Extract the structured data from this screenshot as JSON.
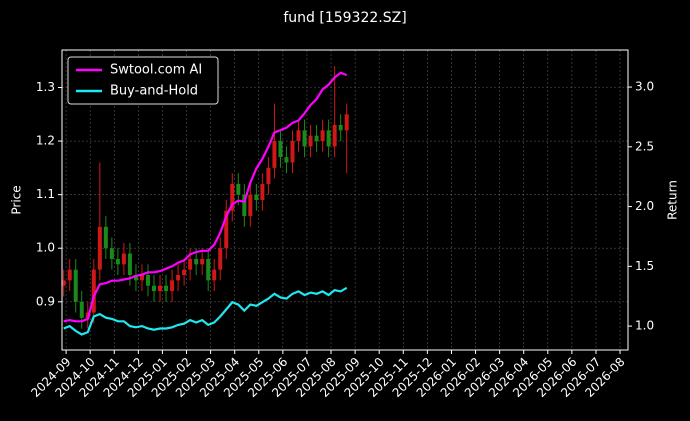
{
  "chart_data": {
    "type": "candlestick",
    "title": "fund [159322.SZ]",
    "ylabel": "Price",
    "y2label": "Return",
    "x": [
      -0.1,
      0.15,
      0.4,
      0.65,
      0.9,
      1.15,
      1.4,
      1.65,
      1.9,
      2.15,
      2.4,
      2.65,
      2.9,
      3.15,
      3.4,
      3.65,
      3.9,
      4.15,
      4.4,
      4.65,
      4.9,
      5.15,
      5.4,
      5.65,
      5.9,
      6.15,
      6.4,
      6.65,
      6.9,
      7.15,
      7.4,
      7.65,
      7.9,
      8.15,
      8.4,
      8.65,
      8.9,
      9.15,
      9.4,
      9.65,
      9.9,
      10.15,
      10.4,
      10.65,
      10.9,
      11.15,
      11.4,
      11.65
    ],
    "open": [
      0.93,
      0.94,
      0.96,
      0.9,
      0.87,
      0.88,
      0.96,
      1.04,
      1.0,
      0.98,
      0.97,
      0.99,
      0.95,
      0.94,
      0.95,
      0.93,
      0.92,
      0.93,
      0.92,
      0.94,
      0.95,
      0.96,
      0.98,
      0.97,
      0.98,
      0.94,
      0.96,
      1.0,
      1.07,
      1.12,
      1.1,
      1.06,
      1.1,
      1.09,
      1.12,
      1.15,
      1.2,
      1.17,
      1.16,
      1.2,
      1.22,
      1.19,
      1.21,
      1.2,
      1.22,
      1.19,
      1.23,
      1.22
    ],
    "high": [
      0.96,
      0.98,
      0.98,
      0.92,
      0.9,
      0.98,
      1.16,
      1.06,
      1.02,
      1.0,
      1.01,
      1.01,
      0.97,
      0.97,
      0.97,
      0.95,
      0.95,
      0.95,
      0.96,
      0.97,
      0.98,
      1.0,
      1.0,
      1.0,
      1.0,
      0.98,
      1.02,
      1.09,
      1.14,
      1.14,
      1.12,
      1.12,
      1.12,
      1.14,
      1.17,
      1.27,
      1.22,
      1.19,
      1.22,
      1.24,
      1.24,
      1.23,
      1.23,
      1.24,
      1.24,
      1.34,
      1.25,
      1.27
    ],
    "low": [
      0.91,
      0.92,
      0.88,
      0.85,
      0.85,
      0.86,
      0.94,
      0.98,
      0.96,
      0.95,
      0.95,
      0.93,
      0.92,
      0.92,
      0.91,
      0.9,
      0.9,
      0.9,
      0.9,
      0.92,
      0.93,
      0.94,
      0.95,
      0.95,
      0.92,
      0.92,
      0.94,
      0.98,
      1.05,
      1.08,
      1.04,
      1.04,
      1.07,
      1.07,
      1.1,
      1.13,
      1.15,
      1.14,
      1.14,
      1.18,
      1.17,
      1.17,
      1.18,
      1.18,
      1.17,
      1.17,
      1.2,
      1.14
    ],
    "close": [
      0.94,
      0.96,
      0.9,
      0.87,
      0.88,
      0.96,
      1.04,
      1.0,
      0.98,
      0.97,
      0.99,
      0.95,
      0.94,
      0.95,
      0.93,
      0.92,
      0.93,
      0.92,
      0.94,
      0.95,
      0.96,
      0.98,
      0.97,
      0.98,
      0.94,
      0.96,
      1.0,
      1.07,
      1.12,
      1.1,
      1.06,
      1.1,
      1.09,
      1.12,
      1.15,
      1.2,
      1.17,
      1.16,
      1.2,
      1.22,
      1.19,
      1.21,
      1.2,
      1.22,
      1.19,
      1.23,
      1.22,
      1.25
    ],
    "up_color": "#d01818",
    "down_color": "#1a8a1a",
    "series": [
      {
        "name": "Swtool.com AI",
        "color": "#ff00ff",
        "axis": "y2",
        "values": [
          1.04,
          1.05,
          1.04,
          1.04,
          1.06,
          1.25,
          1.35,
          1.36,
          1.38,
          1.38,
          1.39,
          1.4,
          1.42,
          1.43,
          1.45,
          1.45,
          1.46,
          1.48,
          1.5,
          1.53,
          1.55,
          1.6,
          1.62,
          1.63,
          1.63,
          1.68,
          1.78,
          1.92,
          2.02,
          2.05,
          2.04,
          2.2,
          2.32,
          2.4,
          2.5,
          2.62,
          2.64,
          2.66,
          2.7,
          2.72,
          2.78,
          2.85,
          2.9,
          2.98,
          3.02,
          3.08,
          3.12,
          3.1
        ]
      },
      {
        "name": "Buy-and-Hold",
        "color": "#1ee8f0",
        "axis": "y2",
        "values": [
          0.98,
          1.0,
          0.96,
          0.93,
          0.95,
          1.08,
          1.1,
          1.07,
          1.06,
          1.04,
          1.04,
          1.0,
          0.99,
          1.0,
          0.98,
          0.97,
          0.98,
          0.98,
          0.99,
          1.01,
          1.02,
          1.05,
          1.03,
          1.05,
          1.01,
          1.03,
          1.08,
          1.14,
          1.2,
          1.18,
          1.13,
          1.18,
          1.17,
          1.2,
          1.23,
          1.27,
          1.24,
          1.23,
          1.27,
          1.29,
          1.26,
          1.28,
          1.27,
          1.29,
          1.26,
          1.3,
          1.29,
          1.32
        ]
      }
    ],
    "xlim": [
      -0.17,
      23.33
    ],
    "xticks": [
      {
        "value": 0,
        "label": "2024-09"
      },
      {
        "value": 1,
        "label": "2024-10"
      },
      {
        "value": 2,
        "label": "2024-11"
      },
      {
        "value": 3,
        "label": "2024-12"
      },
      {
        "value": 4,
        "label": "2025-01"
      },
      {
        "value": 5,
        "label": "2025-02"
      },
      {
        "value": 6,
        "label": "2025-03"
      },
      {
        "value": 7,
        "label": "2025-04"
      },
      {
        "value": 8,
        "label": "2025-05"
      },
      {
        "value": 9,
        "label": "2025-06"
      },
      {
        "value": 10,
        "label": "2025-07"
      },
      {
        "value": 11,
        "label": "2025-08"
      },
      {
        "value": 12,
        "label": "2025-09"
      },
      {
        "value": 13,
        "label": "2025-10"
      },
      {
        "value": 14,
        "label": "2025-11"
      },
      {
        "value": 15,
        "label": "2025-12"
      },
      {
        "value": 16,
        "label": "2026-01"
      },
      {
        "value": 17,
        "label": "2026-02"
      },
      {
        "value": 18,
        "label": "2026-03"
      },
      {
        "value": 19,
        "label": "2026-04"
      },
      {
        "value": 20,
        "label": "2026-05"
      },
      {
        "value": 21,
        "label": "2026-06"
      },
      {
        "value": 22,
        "label": "2026-07"
      },
      {
        "value": 23,
        "label": "2026-08"
      }
    ],
    "ylim": [
      0.81,
      1.37
    ],
    "yticks": [
      0.9,
      {
        "value": 1,
        "label": "1.0"
      },
      1.1,
      1.2,
      1.3
    ],
    "y2lim": [
      0.8,
      3.31
    ],
    "y2ticks": [
      {
        "value": 1,
        "label": "1.0"
      },
      1.5,
      {
        "value": 2,
        "label": "2.0"
      },
      2.5,
      {
        "value": 3,
        "label": "3.0"
      }
    ],
    "grid": true,
    "legend": "upper left"
  }
}
